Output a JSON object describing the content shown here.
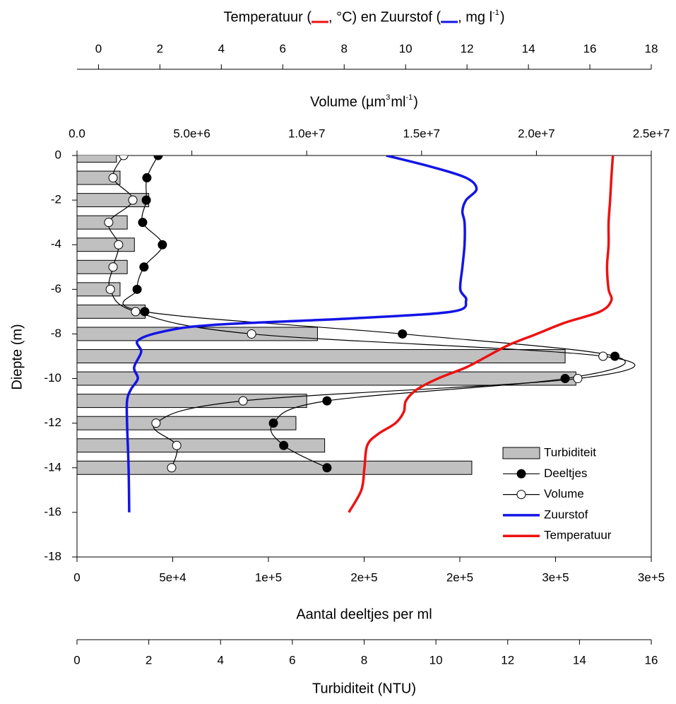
{
  "chart_data": {
    "type": "profile",
    "ylabel": "Diepte (m)",
    "ylim": [
      -18,
      0
    ],
    "yticks": [
      0,
      -2,
      -4,
      -6,
      -8,
      -10,
      -12,
      -14,
      -16,
      -18
    ],
    "axes": [
      {
        "label": [
          {
            "text": "Aantal deeltjes per ml"
          }
        ],
        "lim": [
          0,
          300000
        ],
        "ticks": [
          0,
          {
            "value": 50000,
            "label": "5e+4"
          },
          {
            "value": 100000,
            "label": "1e+5"
          },
          {
            "value": 150000,
            "label": "2e+5"
          },
          {
            "value": 200000,
            "label": "2e+5"
          },
          {
            "value": 250000,
            "label": "3e+5"
          },
          {
            "value": 300000,
            "label": "3e+5"
          }
        ]
      },
      {
        "label": [
          {
            "text": "Turbiditeit (NTU)"
          }
        ],
        "lim": [
          0,
          16
        ],
        "ticks": [
          0,
          2,
          4,
          6,
          8,
          10,
          12,
          14,
          16
        ]
      },
      {
        "label": [
          {
            "text": "Volume (µm"
          },
          {
            "text": "3",
            "sup": true
          },
          {
            "text": " ml"
          },
          {
            "text": "-1",
            "sup": true
          },
          {
            "text": ")"
          }
        ],
        "lim": [
          0,
          25000000
        ],
        "ticks": [
          {
            "value": 0,
            "label": "0.0"
          },
          {
            "value": 5000000,
            "label": "5.0e+6"
          },
          {
            "value": 10000000,
            "label": "1.0e+7"
          },
          {
            "value": 15000000,
            "label": "1.5e+7"
          },
          {
            "value": 20000000,
            "label": "2.0e+7"
          },
          {
            "value": 25000000,
            "label": "2.5e+7"
          }
        ]
      },
      {
        "label": [
          {
            "text": "Temperatuur ("
          },
          {
            "text": ", °C) en Zuurstof ("
          },
          {
            "text": ", mg l"
          },
          {
            "text": "-1",
            "sup": true
          },
          {
            "text": ")"
          }
        ],
        "lim": [
          -0.7,
          18
        ],
        "ticks": [
          0,
          2,
          4,
          6,
          8,
          10,
          12,
          14,
          16,
          18
        ]
      }
    ],
    "series": [
      {
        "name": "Turbiditeit",
        "type": "bar",
        "axis": 1,
        "color": "#c0c0c0",
        "y": [
          0,
          -1,
          -2,
          -3,
          -4,
          -5,
          -6,
          -7,
          -8,
          -9,
          -10,
          -11,
          -12,
          -13,
          -14
        ],
        "values": [
          1.1,
          1.2,
          2.0,
          1.4,
          1.6,
          1.4,
          1.2,
          1.9,
          6.7,
          13.6,
          13.9,
          6.4,
          6.1,
          6.9,
          11.0
        ]
      },
      {
        "name": "Deeltjes",
        "type": "marker-line",
        "axis": 0,
        "color": "#000000",
        "marker_fill": "#000000",
        "y": [
          0,
          -1,
          -2,
          -3,
          -4,
          -5,
          -6,
          -7,
          -8,
          -9,
          -10,
          -11,
          -12,
          -13,
          -14
        ],
        "values": [
          42400,
          36500,
          36200,
          34300,
          44600,
          35000,
          31400,
          35400,
          170000,
          281000,
          255000,
          130600,
          102600,
          108000,
          130600
        ]
      },
      {
        "name": "Volume",
        "type": "marker-line",
        "axis": 2,
        "color": "#000000",
        "marker_fill": "#ffffff",
        "y": [
          0,
          -1,
          -2,
          -3,
          -4,
          -5,
          -6,
          -7,
          -8,
          -9,
          -10,
          -11,
          -12,
          -13,
          -14
        ],
        "values": [
          2030000,
          1570000,
          2430000,
          1380000,
          1810000,
          1570000,
          1450000,
          2550000,
          7600000,
          22900000,
          21800000,
          7230000,
          3440000,
          4340000,
          4120000
        ]
      },
      {
        "name": "Zuurstof",
        "type": "line",
        "axis": 3,
        "color": "#1414e6",
        "y": [
          0,
          -0.5,
          -1,
          -1.5,
          -2,
          -2.5,
          -3,
          -4,
          -5,
          -6,
          -6.5,
          -7,
          -7.3,
          -7.6,
          -7.9,
          -8.3,
          -8.8,
          -9.5,
          -10,
          -10.5,
          -11,
          -12,
          -14,
          -16
        ],
        "values": [
          9.37,
          10.82,
          11.97,
          12.31,
          11.97,
          11.85,
          11.92,
          11.92,
          11.85,
          11.78,
          11.97,
          11.51,
          8.29,
          3.69,
          2.08,
          1.28,
          1.39,
          1.16,
          1.28,
          1.05,
          0.93,
          0.93,
          0.98,
          1.0
        ]
      },
      {
        "name": "Temperatuur",
        "type": "line",
        "axis": 3,
        "color": "#ec1212",
        "y": [
          0,
          -1,
          -2,
          -3,
          -4,
          -5,
          -6,
          -6.5,
          -7,
          -7.5,
          -8,
          -8.5,
          -9,
          -9.5,
          -10,
          -10.5,
          -11,
          -11.5,
          -12,
          -12.5,
          -13,
          -14,
          -15,
          -16
        ],
        "values": [
          16.75,
          16.7,
          16.66,
          16.61,
          16.61,
          16.56,
          16.61,
          16.7,
          16.33,
          15.18,
          14.27,
          13.35,
          12.66,
          11.97,
          11.05,
          10.36,
          10.01,
          9.94,
          9.67,
          9.09,
          8.75,
          8.66,
          8.56,
          8.15
        ]
      }
    ],
    "legend": "lower right"
  }
}
